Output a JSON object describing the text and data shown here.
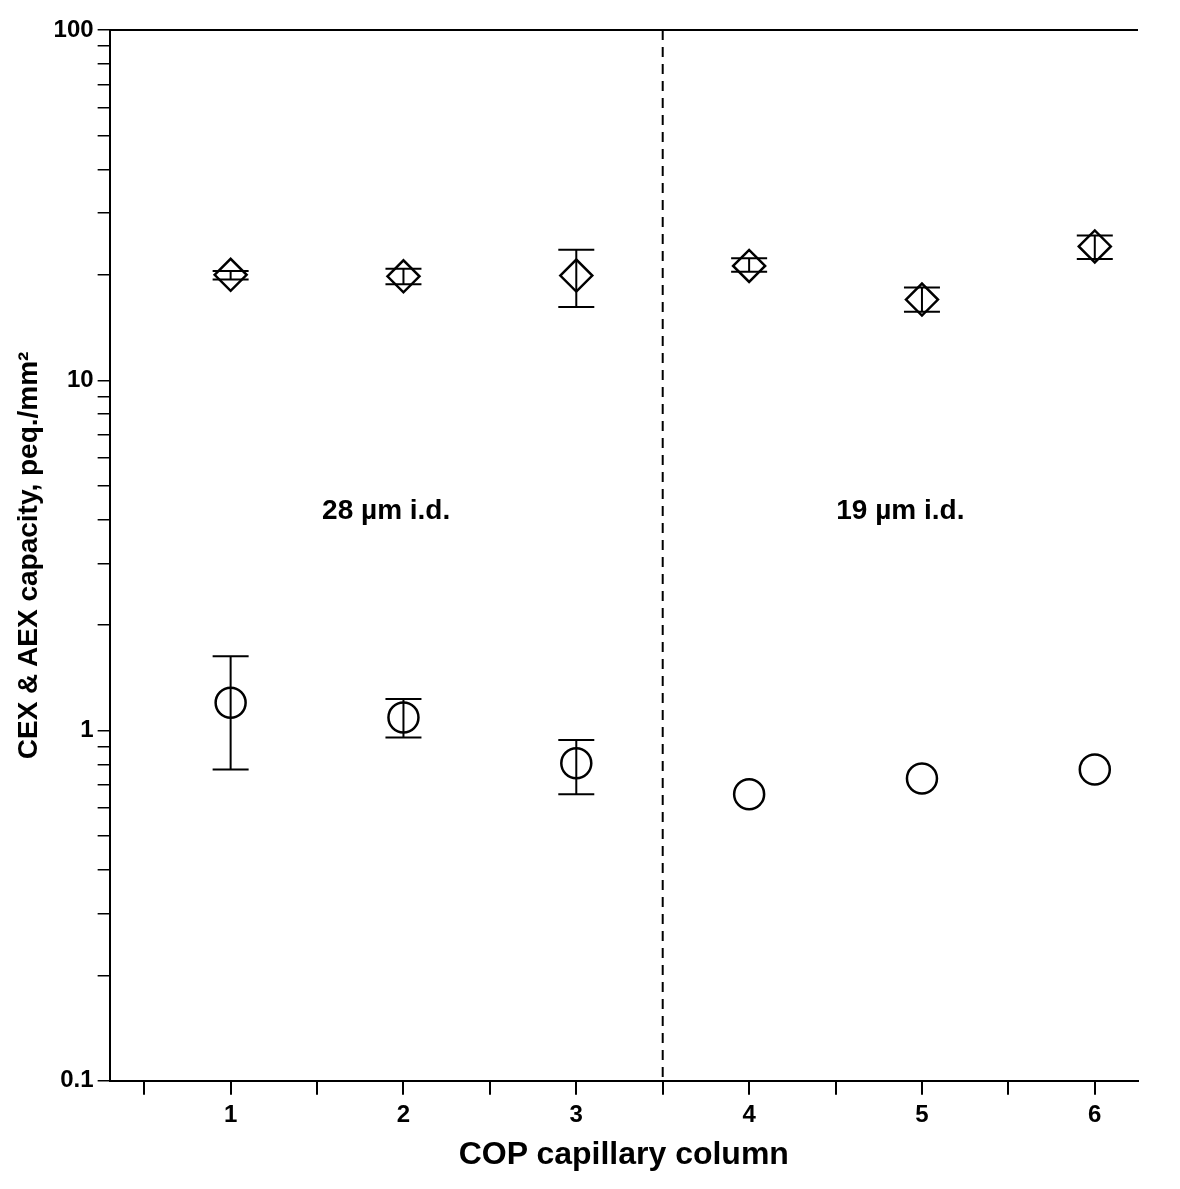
{
  "chart_data": {
    "type": "scatter",
    "xlabel": "COP capillary column",
    "ylabel": "CEX & AEX capacity, peq./mm²",
    "log": "y",
    "grid": false,
    "legend": false,
    "xlim": [
      0.3,
      6.25
    ],
    "xticks": [
      {
        "value": 0.5,
        "label": null
      },
      1,
      {
        "value": 1.5,
        "label": null
      },
      2,
      {
        "value": 2.5,
        "label": null
      },
      3,
      {
        "value": 3.5,
        "label": null
      },
      4,
      {
        "value": 4.5,
        "label": null
      },
      5,
      {
        "value": 5.5,
        "label": null
      },
      6
    ],
    "ylim": [
      0.1,
      100
    ],
    "yticks": [
      0.1,
      {
        "value": 0.2,
        "label": null
      },
      {
        "value": 0.3,
        "label": null
      },
      {
        "value": 0.4,
        "label": null
      },
      {
        "value": 0.5,
        "label": null
      },
      {
        "value": 0.6,
        "label": null
      },
      {
        "value": 0.7,
        "label": null
      },
      {
        "value": 0.8,
        "label": null
      },
      {
        "value": 0.9,
        "label": null
      },
      1,
      {
        "value": 2,
        "label": null
      },
      {
        "value": 3,
        "label": null
      },
      {
        "value": 4,
        "label": null
      },
      {
        "value": 5,
        "label": null
      },
      {
        "value": 6,
        "label": null
      },
      {
        "value": 7,
        "label": null
      },
      {
        "value": 8,
        "label": null
      },
      {
        "value": 9,
        "label": null
      },
      10,
      {
        "value": 20,
        "label": null
      },
      {
        "value": 30,
        "label": null
      },
      {
        "value": 40,
        "label": null
      },
      {
        "value": 50,
        "label": null
      },
      {
        "value": 60,
        "label": null
      },
      {
        "value": 70,
        "label": null
      },
      {
        "value": 80,
        "label": null
      },
      {
        "value": 90,
        "label": null
      },
      100
    ],
    "series": [
      {
        "color": "#000000",
        "marker": "diamond",
        "x": [
          1,
          2,
          3,
          4,
          5,
          6
        ],
        "values": [
          20,
          19.8,
          19.9,
          21.2,
          17,
          24.1
        ],
        "errors": [
          [
            19.4,
            20.5
          ],
          [
            18.8,
            20.8
          ],
          [
            16.2,
            23.6
          ],
          [
            20.4,
            22.3
          ],
          [
            15.7,
            18.4
          ],
          [
            22.2,
            25.9
          ]
        ]
      },
      {
        "color": "#000000",
        "marker": "circle",
        "x": [
          1,
          2,
          3,
          4,
          5,
          6
        ],
        "values": [
          1.2,
          1.09,
          0.806,
          0.658,
          0.73,
          0.774
        ],
        "errors": [
          [
            0.774,
            1.63
          ],
          [
            0.955,
            1.23
          ],
          [
            0.658,
            0.94
          ],
          null,
          null,
          null
        ]
      }
    ],
    "ref_lines": [
      {
        "axis": "x",
        "value": 3.5,
        "line_style": "dashed",
        "color": "#000000"
      }
    ],
    "annotations": [
      "28 µm i.d.",
      "19 µm i.d."
    ]
  }
}
